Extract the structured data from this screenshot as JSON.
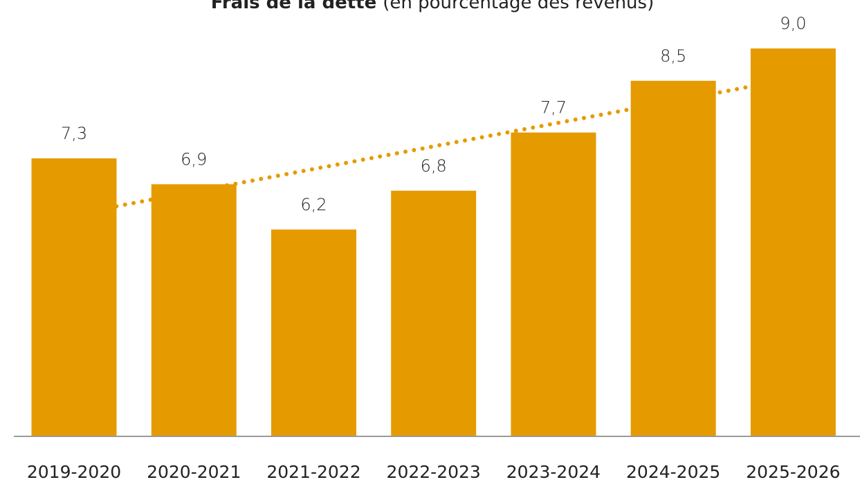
{
  "chart_data": {
    "type": "bar",
    "title": "Frais de la dette",
    "subtitle": "(en pourcentage des revenus)",
    "categories": [
      "2019-2020",
      "2020-2021",
      "2021-2022",
      "2022-2023",
      "2023-2024",
      "2024-2025",
      "2025-2026"
    ],
    "values": [
      7.3,
      6.9,
      6.2,
      6.8,
      7.7,
      8.5,
      9.0
    ],
    "value_labels": [
      "7,3",
      "6,9",
      "6,2",
      "6,8",
      "7,7",
      "8,5",
      "9,0"
    ],
    "color": "#e59b00",
    "ylim": [
      3,
      9.6
    ],
    "trendline": true
  }
}
